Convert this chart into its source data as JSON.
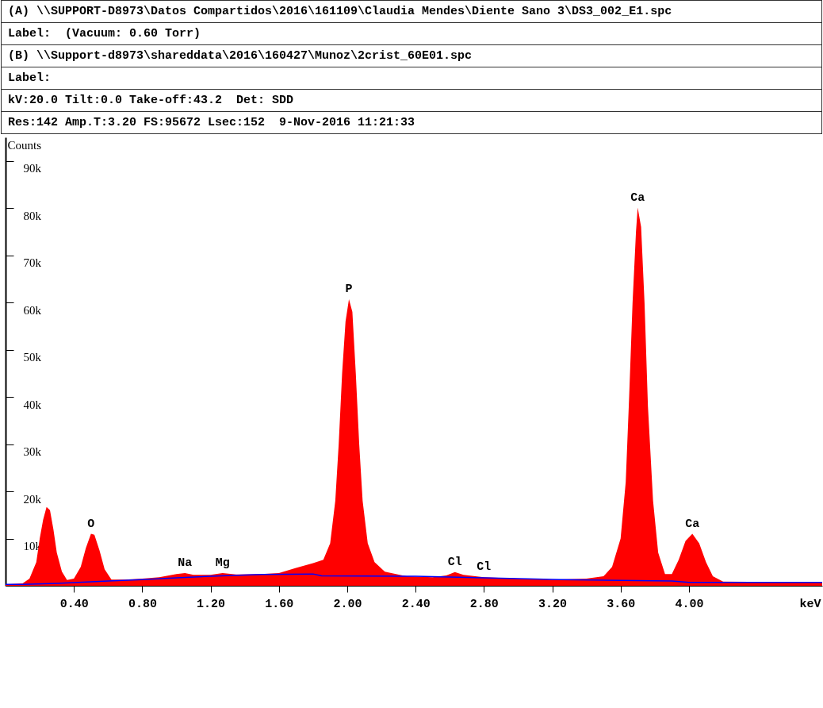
{
  "chart_data": {
    "type": "area",
    "title": "(A) \\\\SUPPORT-D8973\\Datos Compartidos\\2016\\161109\\Claudia Mendes\\Diente Sano 3\\DS3_002_E1.spc",
    "annotations": [
      "Label:  (Vacuum: 0.60 Torr)",
      "(B) \\\\Support-d8973\\shareddata\\2016\\160427\\Munoz\\2crist_60E01.spc",
      "Label:",
      "kV:20.0 Tilt:0.0 Take-off:43.2  Det: SDD",
      "Res:142 Amp.T:3.20 FS:95672 Lsec:152  9-Nov-2016 11:21:33",
      {
        "text": "O",
        "x": 0.5,
        "y": 11000
      },
      {
        "text": "Na",
        "x": 1.05,
        "y": 2700
      },
      {
        "text": "Mg",
        "x": 1.27,
        "y": 2700
      },
      {
        "text": "P",
        "x": 2.01,
        "y": 60700
      },
      {
        "text": "Cl",
        "x": 2.63,
        "y": 2900
      },
      {
        "text": "Cl",
        "x": 2.8,
        "y": 1800
      },
      {
        "text": "Ca",
        "x": 3.7,
        "y": 80100
      },
      {
        "text": "Ca",
        "x": 4.02,
        "y": 11000
      }
    ],
    "xlabel": "keV",
    "ylabel": "Counts",
    "xlim": [
      0,
      4.78
    ],
    "ylim": [
      0,
      95000
    ],
    "xticks": [
      {
        "value": 0.4,
        "label": "0.40"
      },
      {
        "value": 0.8,
        "label": "0.80"
      },
      {
        "value": 1.2,
        "label": "1.20"
      },
      {
        "value": 1.6,
        "label": "1.60"
      },
      {
        "value": 2.0,
        "label": "2.00"
      },
      {
        "value": 2.4,
        "label": "2.40"
      },
      {
        "value": 2.8,
        "label": "2.80"
      },
      {
        "value": 3.2,
        "label": "3.20"
      },
      {
        "value": 3.6,
        "label": "3.60"
      },
      {
        "value": 4.0,
        "label": "4.00"
      }
    ],
    "yticks": [
      {
        "value": 10000,
        "label": "10k"
      },
      {
        "value": 20000,
        "label": "20k"
      },
      {
        "value": 30000,
        "label": "30k"
      },
      {
        "value": 40000,
        "label": "40k"
      },
      {
        "value": 50000,
        "label": "50k"
      },
      {
        "value": 60000,
        "label": "60k"
      },
      {
        "value": 70000,
        "label": "70k"
      },
      {
        "value": 80000,
        "label": "80k"
      },
      {
        "value": 90000,
        "label": "90k"
      }
    ],
    "series": [
      {
        "type": "area",
        "color": "#ff0000",
        "x": [
          0,
          0.1,
          0.14,
          0.18,
          0.2,
          0.22,
          0.24,
          0.26,
          0.28,
          0.3,
          0.33,
          0.36,
          0.4,
          0.44,
          0.47,
          0.5,
          0.52,
          0.55,
          0.58,
          0.62,
          0.7,
          0.8,
          0.9,
          1.0,
          1.05,
          1.1,
          1.2,
          1.27,
          1.35,
          1.5,
          1.6,
          1.7,
          1.8,
          1.86,
          1.9,
          1.93,
          1.95,
          1.97,
          1.99,
          2.01,
          2.03,
          2.05,
          2.07,
          2.09,
          2.12,
          2.16,
          2.22,
          2.35,
          2.5,
          2.58,
          2.63,
          2.68,
          2.8,
          3.0,
          3.2,
          3.4,
          3.5,
          3.55,
          3.6,
          3.63,
          3.65,
          3.67,
          3.69,
          3.7,
          3.72,
          3.74,
          3.76,
          3.79,
          3.82,
          3.86,
          3.9,
          3.94,
          3.98,
          4.02,
          4.06,
          4.1,
          4.14,
          4.2,
          4.5,
          4.78
        ],
        "values": [
          300,
          500,
          1500,
          5000,
          10000,
          14000,
          16700,
          16000,
          12000,
          7000,
          3000,
          1200,
          1500,
          4000,
          8000,
          11000,
          10800,
          7500,
          3500,
          1300,
          1300,
          1500,
          1800,
          2500,
          2700,
          2300,
          2300,
          2700,
          2400,
          2500,
          2700,
          3800,
          4800,
          5500,
          9000,
          18000,
          30000,
          45000,
          56000,
          60700,
          58000,
          45000,
          30000,
          18000,
          9000,
          5000,
          3000,
          2000,
          1800,
          2200,
          2900,
          2300,
          1800,
          1500,
          1300,
          1500,
          2000,
          4000,
          10000,
          22000,
          40000,
          60000,
          75000,
          80100,
          76000,
          60000,
          38000,
          18000,
          7000,
          2500,
          2500,
          5500,
          9500,
          11000,
          9000,
          5000,
          2000,
          900,
          800,
          800
        ]
      },
      {
        "type": "line",
        "color": "#0000ff",
        "x": [
          0,
          0.1,
          0.3,
          0.6,
          0.8,
          1.0,
          1.2,
          1.5,
          1.8,
          1.85,
          2.4,
          2.8,
          3.25,
          3.9,
          4.0,
          4.78
        ],
        "values": [
          300,
          300,
          500,
          1000,
          1300,
          1700,
          2000,
          2400,
          2500,
          2100,
          2000,
          1700,
          1300,
          1000,
          700,
          700
        ]
      }
    ]
  }
}
